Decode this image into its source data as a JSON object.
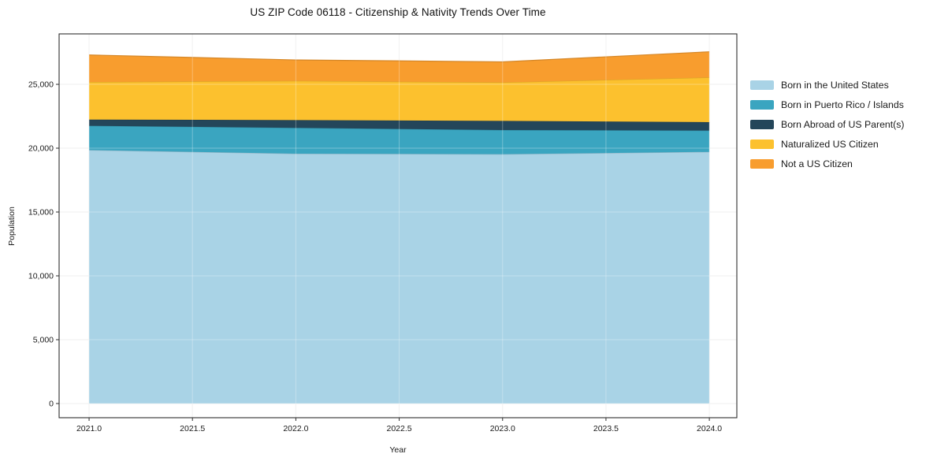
{
  "chart_data": {
    "type": "area",
    "stacked": true,
    "title": "US ZIP Code 06118 - Citizenship & Nativity Trends Over Time",
    "xlabel": "Year",
    "ylabel": "Population",
    "x": [
      2021,
      2022,
      2023,
      2024
    ],
    "xticks": [
      2021.0,
      2021.5,
      2022.0,
      2022.5,
      2023.0,
      2023.5,
      2024.0
    ],
    "xtick_labels": [
      "2021.0",
      "2021.5",
      "2022.0",
      "2022.5",
      "2023.0",
      "2023.5",
      "2024.0"
    ],
    "yticks": [
      0,
      5000,
      10000,
      15000,
      20000,
      25000
    ],
    "ytick_labels": [
      "0",
      "5,000",
      "10,000",
      "15,000",
      "20,000",
      "25,000"
    ],
    "xlim": [
      2020.855,
      2024.133
    ],
    "ylim": [
      -1110,
      28950
    ],
    "grid": true,
    "legend_position": "right-outside",
    "series": [
      {
        "name": "Born in the United States",
        "color": "#a9d3e6",
        "values": [
          19850,
          19570,
          19530,
          19710
        ]
      },
      {
        "name": "Born in Puerto Rico / Islands",
        "color": "#3aa5c0",
        "values": [
          1900,
          2020,
          1890,
          1670
        ]
      },
      {
        "name": "Born Abroad of US Parent(s)",
        "color": "#24465a",
        "values": [
          490,
          610,
          720,
          660
        ]
      },
      {
        "name": "Naturalized US Citizen",
        "color": "#fcc12e",
        "values": [
          2940,
          3070,
          3010,
          3500
        ]
      },
      {
        "name": "Not a US Citizen",
        "color": "#f89d2e",
        "values": [
          2120,
          1640,
          1610,
          2010
        ]
      }
    ]
  }
}
